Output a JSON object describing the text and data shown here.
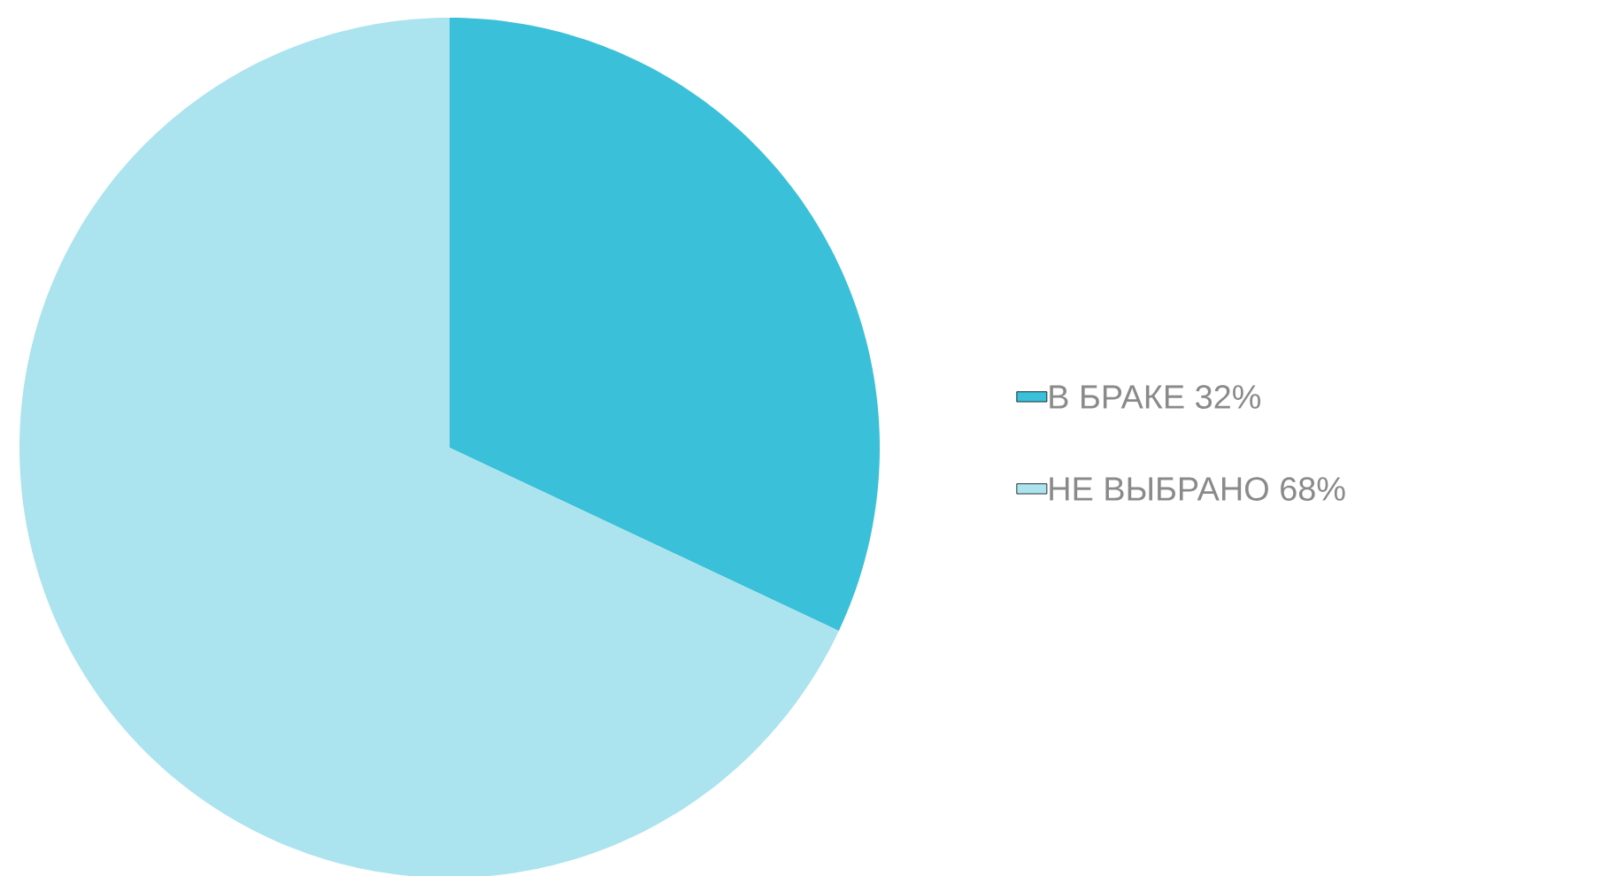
{
  "chart_data": {
    "type": "pie",
    "categories": [
      "В БРАКЕ",
      "НЕ ВЫБРАНО"
    ],
    "values": [
      32,
      68
    ],
    "value_labels": [
      "32%",
      "68%"
    ],
    "colors": [
      "#3bc0d9",
      "#abe3ee"
    ],
    "legend": "right"
  }
}
